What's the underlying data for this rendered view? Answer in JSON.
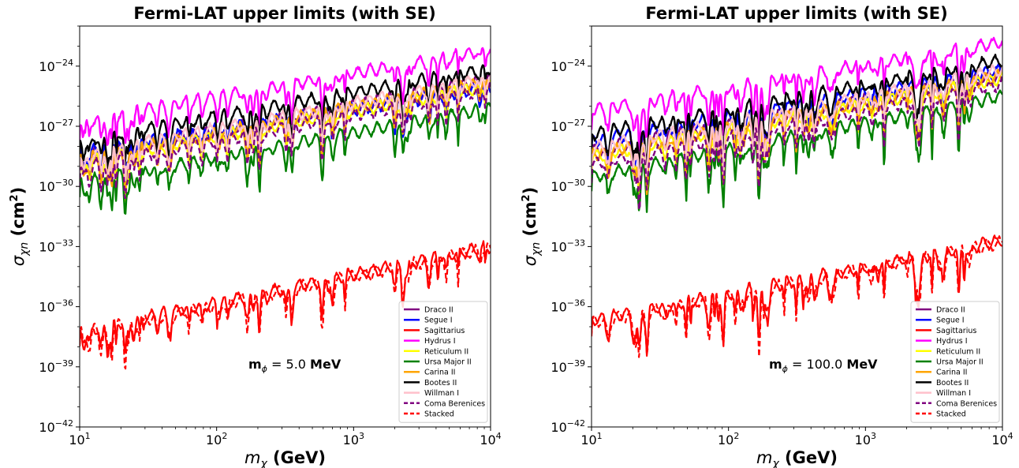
{
  "chart_data": [
    {
      "type": "line",
      "title": "Fermi-LAT upper limits (with SE)",
      "xlabel": "m_χ (GeV)",
      "ylabel": "σ_χn (cm²)",
      "xscale": "log",
      "yscale": "log",
      "xlim": [
        10,
        10000
      ],
      "ylim": [
        1e-42,
        1e-22
      ],
      "xticks": [
        10,
        100,
        1000,
        10000
      ],
      "xtick_labels": [
        {
          "base": "10",
          "exp": "1"
        },
        {
          "base": "10",
          "exp": "2"
        },
        {
          "base": "10",
          "exp": "3"
        },
        {
          "base": "10",
          "exp": "4"
        }
      ],
      "yticks": [
        1e-42,
        1e-39,
        1e-36,
        1e-33,
        1e-30,
        1e-27,
        1e-24
      ],
      "ytick_labels": [
        {
          "base": "10",
          "exp": "−42"
        },
        {
          "base": "10",
          "exp": "−39"
        },
        {
          "base": "10",
          "exp": "−36"
        },
        {
          "base": "10",
          "exp": "−33"
        },
        {
          "base": "10",
          "exp": "−30"
        },
        {
          "base": "10",
          "exp": "−27"
        },
        {
          "base": "10",
          "exp": "−24"
        }
      ],
      "annotation": {
        "label": "m",
        "sub": "ϕ",
        "value": " = 5.0 ",
        "unit": "MeV"
      },
      "legend_position": "lower right",
      "grid": false,
      "series": [
        {
          "name": "Draco II",
          "color": "#800080",
          "style": "solid",
          "log_y_at_x": [
            [
              10,
              -28.3
            ],
            [
              10000,
              -24.5
            ]
          ]
        },
        {
          "name": "Segue I",
          "color": "#0000ff",
          "style": "solid",
          "log_y_at_x": [
            [
              10,
              -28.0
            ],
            [
              10000,
              -24.9
            ]
          ]
        },
        {
          "name": "Sagittarius",
          "color": "#ff0000",
          "style": "solid",
          "log_y_at_x": [
            [
              10,
              -37.0
            ],
            [
              10000,
              -32.8
            ]
          ]
        },
        {
          "name": "Hydrus I",
          "color": "#ff00ff",
          "style": "solid",
          "log_y_at_x": [
            [
              10,
              -26.5
            ],
            [
              10000,
              -23.0
            ]
          ]
        },
        {
          "name": "Reticulum II",
          "color": "#ffff00",
          "style": "solid",
          "log_y_at_x": [
            [
              10,
              -28.6
            ],
            [
              10000,
              -24.8
            ]
          ]
        },
        {
          "name": "Ursa Major II",
          "color": "#008000",
          "style": "solid",
          "log_y_at_x": [
            [
              10,
              -29.6
            ],
            [
              10000,
              -25.9
            ]
          ]
        },
        {
          "name": "Carina II",
          "color": "#ffa500",
          "style": "solid",
          "log_y_at_x": [
            [
              10,
              -28.4
            ],
            [
              10000,
              -24.6
            ]
          ]
        },
        {
          "name": "Bootes II",
          "color": "#000000",
          "style": "solid",
          "log_y_at_x": [
            [
              10,
              -27.5
            ],
            [
              10000,
              -23.9
            ]
          ]
        },
        {
          "name": "Willman I",
          "color": "#ffc0cb",
          "style": "solid",
          "log_y_at_x": [
            [
              10,
              -28.2
            ],
            [
              10000,
              -24.4
            ]
          ]
        },
        {
          "name": "Coma Berenices",
          "color": "#800080",
          "style": "dashed",
          "log_y_at_x": [
            [
              10,
              -28.8
            ],
            [
              10000,
              -25.0
            ]
          ]
        },
        {
          "name": "Stacked",
          "color": "#ff0000",
          "style": "dashed",
          "log_y_at_x": [
            [
              10,
              -37.1
            ],
            [
              10000,
              -32.9
            ]
          ]
        }
      ]
    },
    {
      "type": "line",
      "title": "Fermi-LAT upper limits (with SE)",
      "xlabel": "m_χ (GeV)",
      "ylabel": "σ_χn (cm²)",
      "xscale": "log",
      "yscale": "log",
      "xlim": [
        10,
        10000
      ],
      "ylim": [
        1e-42,
        1e-22
      ],
      "xticks": [
        10,
        100,
        1000,
        10000
      ],
      "xtick_labels": [
        {
          "base": "10",
          "exp": "1"
        },
        {
          "base": "10",
          "exp": "2"
        },
        {
          "base": "10",
          "exp": "3"
        },
        {
          "base": "10",
          "exp": "4"
        }
      ],
      "yticks": [
        1e-42,
        1e-39,
        1e-36,
        1e-33,
        1e-30,
        1e-27,
        1e-24
      ],
      "ytick_labels": [
        {
          "base": "10",
          "exp": "−42"
        },
        {
          "base": "10",
          "exp": "−39"
        },
        {
          "base": "10",
          "exp": "−36"
        },
        {
          "base": "10",
          "exp": "−33"
        },
        {
          "base": "10",
          "exp": "−30"
        },
        {
          "base": "10",
          "exp": "−27"
        },
        {
          "base": "10",
          "exp": "−24"
        }
      ],
      "annotation": {
        "label": "m",
        "sub": "ϕ",
        "value": " = 100.0 ",
        "unit": "MeV"
      },
      "legend_position": "lower right",
      "grid": false,
      "series": [
        {
          "name": "Draco II",
          "color": "#800080",
          "style": "solid",
          "log_y_at_x": [
            [
              10,
              -28.0
            ],
            [
              10000,
              -24.2
            ]
          ]
        },
        {
          "name": "Segue I",
          "color": "#0000ff",
          "style": "solid",
          "log_y_at_x": [
            [
              10,
              -27.5
            ],
            [
              10000,
              -24.0
            ]
          ]
        },
        {
          "name": "Sagittarius",
          "color": "#ff0000",
          "style": "solid",
          "log_y_at_x": [
            [
              10,
              -36.5
            ],
            [
              10000,
              -32.5
            ]
          ]
        },
        {
          "name": "Hydrus I",
          "color": "#ff00ff",
          "style": "solid",
          "log_y_at_x": [
            [
              10,
              -26.0
            ],
            [
              10000,
              -22.6
            ]
          ]
        },
        {
          "name": "Reticulum II",
          "color": "#ffff00",
          "style": "solid",
          "log_y_at_x": [
            [
              10,
              -28.3
            ],
            [
              10000,
              -24.4
            ]
          ]
        },
        {
          "name": "Ursa Major II",
          "color": "#008000",
          "style": "solid",
          "log_y_at_x": [
            [
              10,
              -29.3
            ],
            [
              10000,
              -25.3
            ]
          ]
        },
        {
          "name": "Carina II",
          "color": "#ffa500",
          "style": "solid",
          "log_y_at_x": [
            [
              10,
              -28.2
            ],
            [
              10000,
              -24.3
            ]
          ]
        },
        {
          "name": "Bootes II",
          "color": "#000000",
          "style": "solid",
          "log_y_at_x": [
            [
              10,
              -27.2
            ],
            [
              10000,
              -23.5
            ]
          ]
        },
        {
          "name": "Willman I",
          "color": "#ffc0cb",
          "style": "solid",
          "log_y_at_x": [
            [
              10,
              -27.9
            ],
            [
              10000,
              -24.0
            ]
          ]
        },
        {
          "name": "Coma Berenices",
          "color": "#800080",
          "style": "dashed",
          "log_y_at_x": [
            [
              10,
              -28.7
            ],
            [
              10000,
              -24.7
            ]
          ]
        },
        {
          "name": "Stacked",
          "color": "#ff0000",
          "style": "dashed",
          "log_y_at_x": [
            [
              10,
              -36.6
            ],
            [
              10000,
              -32.6
            ]
          ]
        }
      ]
    }
  ]
}
